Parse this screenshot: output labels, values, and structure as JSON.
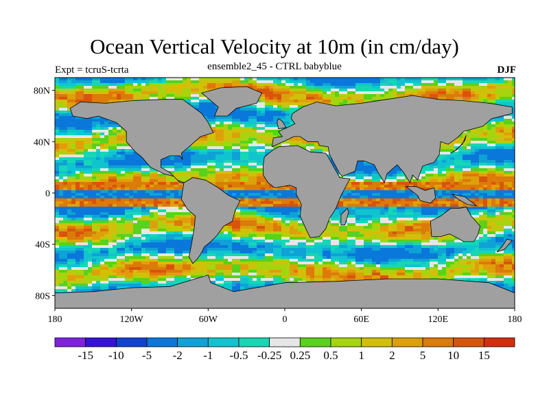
{
  "title": "Ocean Vertical Velocity at 10m (in cm/day)",
  "subtitle": "ensemble2_45 - CTRL babyblue",
  "left_label": "Expt = tcruS-tcrta",
  "right_label": "DJF",
  "map": {
    "x_ticks": [
      "180",
      "120W",
      "60W",
      "0",
      "60E",
      "120E",
      "180"
    ],
    "x_tick_lons": [
      -180,
      -120,
      -60,
      0,
      60,
      120,
      180
    ],
    "y_ticks": [
      "80N",
      "40N",
      "0",
      "40S",
      "80S"
    ],
    "y_tick_lats": [
      80,
      40,
      0,
      -40,
      -80
    ],
    "lat_range": [
      -90,
      90
    ],
    "lon_range": [
      -180,
      180
    ],
    "land_color": "#a0a0a0",
    "field_note_colors": [
      "#7f22e0",
      "#3612d8",
      "#1143d2",
      "#0a78da",
      "#0fa2d6",
      "#10c4cf",
      "#16d7b4",
      "#e6e6e6",
      "#58d21a",
      "#a6d40e",
      "#d1c00a",
      "#dea00a",
      "#dc7a0a",
      "#d8540c",
      "#d42e0c"
    ]
  },
  "colorbar": {
    "labels": [
      "-15",
      "-10",
      "-5",
      "-2",
      "-1",
      "-0.5",
      "-0.25",
      "0.25",
      "0.5",
      "1",
      "2",
      "5",
      "10",
      "15"
    ],
    "colors": [
      "#7f22e0",
      "#3612d8",
      "#1143d2",
      "#0a78da",
      "#0fa2d6",
      "#10c4cf",
      "#16d7b4",
      "#e6e6e6",
      "#58d21a",
      "#a6d40e",
      "#d1c00a",
      "#dea00a",
      "#dc7a0a",
      "#d8540c",
      "#d42e0c"
    ]
  }
}
